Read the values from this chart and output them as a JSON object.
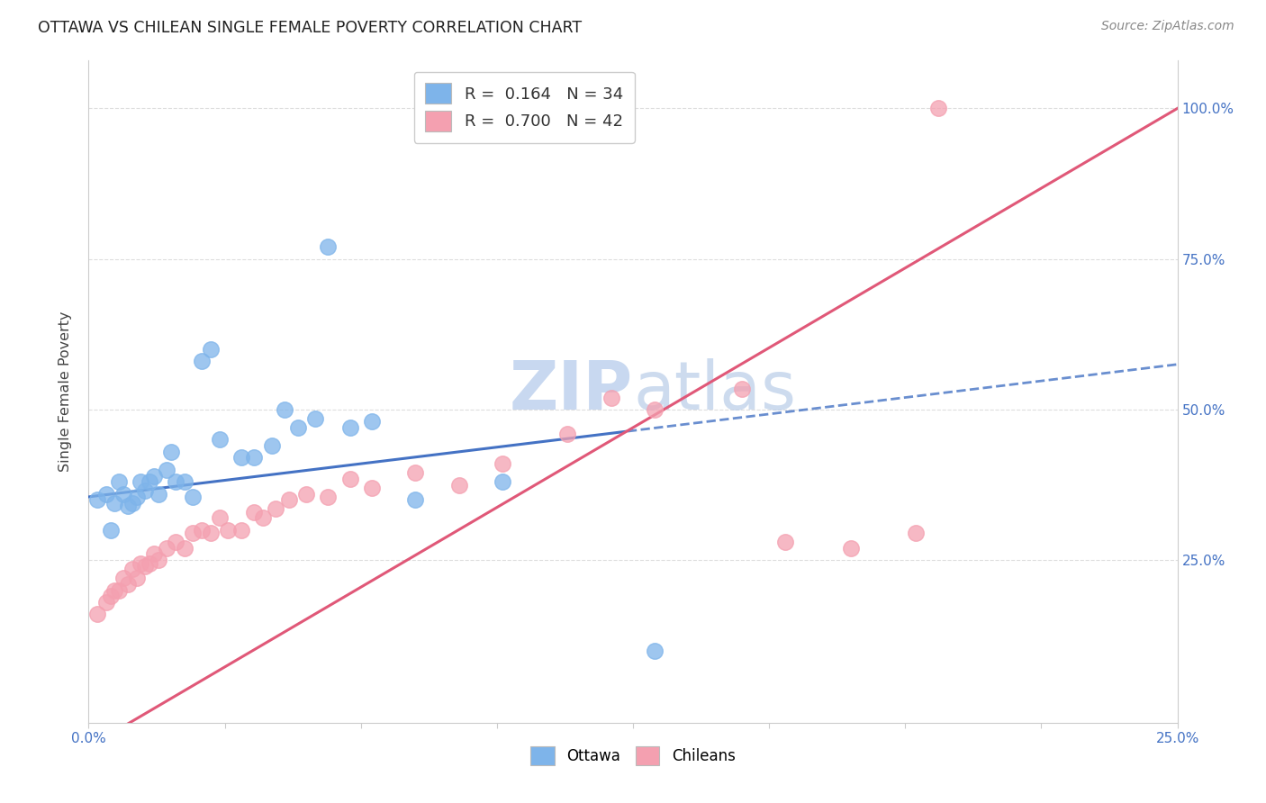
{
  "title": "OTTAWA VS CHILEAN SINGLE FEMALE POVERTY CORRELATION CHART",
  "source": "Source: ZipAtlas.com",
  "ylabel": "Single Female Poverty",
  "xlabel": "",
  "xlim": [
    0.0,
    0.25
  ],
  "ylim": [
    -0.02,
    1.08
  ],
  "xticks": [
    0.0,
    0.03125,
    0.0625,
    0.09375,
    0.125,
    0.15625,
    0.1875,
    0.21875,
    0.25
  ],
  "xticklabels": [
    "0.0%",
    "",
    "",
    "",
    "",
    "",
    "",
    "",
    "25.0%"
  ],
  "ytick_positions": [
    0.25,
    0.5,
    0.75,
    1.0
  ],
  "ytick_labels": [
    "25.0%",
    "50.0%",
    "75.0%",
    "100.0%"
  ],
  "ottawa_color": "#7EB4EA",
  "chilean_color": "#F4A0B0",
  "ottawa_line_color": "#4472C4",
  "chilean_line_color": "#E05878",
  "watermark_color": "#C8D8F0",
  "legend_R1": "R =  0.164",
  "legend_N1": "N = 34",
  "legend_R2": "R =  0.700",
  "legend_N2": "N = 42",
  "ottawa_x": [
    0.002,
    0.004,
    0.005,
    0.006,
    0.007,
    0.008,
    0.009,
    0.01,
    0.011,
    0.012,
    0.013,
    0.014,
    0.015,
    0.016,
    0.018,
    0.019,
    0.02,
    0.022,
    0.024,
    0.026,
    0.028,
    0.03,
    0.035,
    0.038,
    0.042,
    0.045,
    0.048,
    0.052,
    0.055,
    0.06,
    0.065,
    0.075,
    0.095,
    0.13
  ],
  "ottawa_y": [
    0.35,
    0.36,
    0.3,
    0.345,
    0.38,
    0.36,
    0.34,
    0.345,
    0.355,
    0.38,
    0.365,
    0.38,
    0.39,
    0.36,
    0.4,
    0.43,
    0.38,
    0.38,
    0.355,
    0.58,
    0.6,
    0.45,
    0.42,
    0.42,
    0.44,
    0.5,
    0.47,
    0.485,
    0.77,
    0.47,
    0.48,
    0.35,
    0.38,
    0.1
  ],
  "chilean_x": [
    0.002,
    0.004,
    0.005,
    0.006,
    0.007,
    0.008,
    0.009,
    0.01,
    0.011,
    0.012,
    0.013,
    0.014,
    0.015,
    0.016,
    0.018,
    0.02,
    0.022,
    0.024,
    0.026,
    0.028,
    0.03,
    0.032,
    0.035,
    0.038,
    0.04,
    0.043,
    0.046,
    0.05,
    0.055,
    0.06,
    0.065,
    0.075,
    0.085,
    0.095,
    0.11,
    0.12,
    0.13,
    0.15,
    0.16,
    0.175,
    0.19,
    0.195
  ],
  "chilean_y": [
    0.16,
    0.18,
    0.19,
    0.2,
    0.2,
    0.22,
    0.21,
    0.235,
    0.22,
    0.245,
    0.24,
    0.245,
    0.26,
    0.25,
    0.27,
    0.28,
    0.27,
    0.295,
    0.3,
    0.295,
    0.32,
    0.3,
    0.3,
    0.33,
    0.32,
    0.335,
    0.35,
    0.36,
    0.355,
    0.385,
    0.37,
    0.395,
    0.375,
    0.41,
    0.46,
    0.52,
    0.5,
    0.535,
    0.28,
    0.27,
    0.295,
    1.0
  ],
  "background_color": "#FFFFFF",
  "grid_color": "#DDDDDD"
}
